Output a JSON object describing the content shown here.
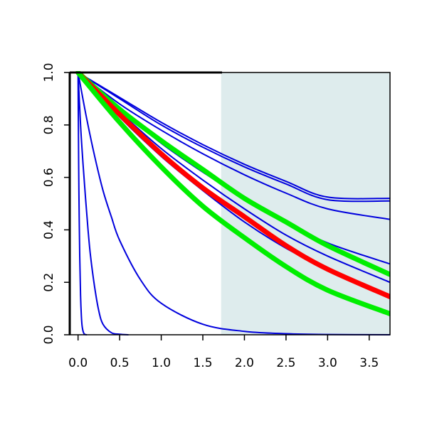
{
  "chart_data": {
    "type": "line",
    "title": "",
    "xlabel": "",
    "ylabel": "",
    "xlim": [
      -0.1,
      3.75
    ],
    "ylim": [
      0,
      1
    ],
    "x_ticks": [
      "0.0",
      "0.5",
      "1.0",
      "1.5",
      "2.0",
      "2.5",
      "3.0",
      "3.5"
    ],
    "x_tick_values": [
      0,
      0.5,
      1,
      1.5,
      2,
      2.5,
      3,
      3.5
    ],
    "y_ticks": [
      "0.0",
      "0.2",
      "0.4",
      "0.6",
      "0.8",
      "1.0"
    ],
    "y_tick_values": [
      0,
      0.2,
      0.4,
      0.6,
      0.8,
      1
    ],
    "shaded_region": {
      "x_from": 1.72,
      "x_to": 3.75,
      "color": "#deeced"
    },
    "series": [
      {
        "color": "#0000dd",
        "width": "thin",
        "x": [
          0,
          0.5,
          1,
          1.5,
          2,
          2.5,
          3,
          3.75
        ],
        "y": [
          1,
          0.905,
          0.81,
          0.725,
          0.65,
          0.585,
          0.525,
          0.52
        ]
      },
      {
        "color": "#0000dd",
        "width": "thin",
        "x": [
          0,
          0.5,
          1,
          1.5,
          2,
          2.5,
          3,
          3.75
        ],
        "y": [
          1,
          0.9,
          0.8,
          0.715,
          0.64,
          0.575,
          0.515,
          0.51
        ]
      },
      {
        "color": "#0000dd",
        "width": "thin",
        "x": [
          0,
          0.5,
          1,
          1.5,
          2,
          2.5,
          3,
          3.75
        ],
        "y": [
          1,
          0.88,
          0.78,
          0.69,
          0.61,
          0.54,
          0.48,
          0.44
        ]
      },
      {
        "color": "#0000dd",
        "width": "thin",
        "x": [
          0,
          0.5,
          1,
          1.5,
          2,
          2.5,
          3,
          3.75
        ],
        "y": [
          1,
          0.86,
          0.73,
          0.62,
          0.52,
          0.43,
          0.35,
          0.27
        ]
      },
      {
        "color": "#0000dd",
        "width": "thin",
        "x": [
          0,
          0.5,
          1,
          1.5,
          2,
          2.5,
          3,
          3.75
        ],
        "y": [
          1,
          0.85,
          0.71,
          0.59,
          0.48,
          0.38,
          0.3,
          0.2
        ]
      },
      {
        "color": "#0000dd",
        "width": "thin",
        "x": [
          0,
          0.5,
          1,
          1.5,
          2,
          2.5,
          3,
          3.75
        ],
        "y": [
          1,
          0.83,
          0.68,
          0.55,
          0.43,
          0.33,
          0.25,
          0.14
        ]
      },
      {
        "color": "#0000dd",
        "width": "thin",
        "x": [
          0,
          0.1,
          0.2,
          0.3,
          0.4,
          0.5,
          0.75,
          1,
          1.5,
          2,
          2.5,
          3,
          3.75
        ],
        "y": [
          1,
          0.83,
          0.68,
          0.55,
          0.45,
          0.36,
          0.21,
          0.12,
          0.04,
          0.013,
          0.004,
          0.001,
          0
        ]
      },
      {
        "color": "#0000dd",
        "width": "thin",
        "x": [
          0,
          0.03,
          0.06,
          0.09,
          0.12,
          0.15,
          0.2,
          0.25,
          0.3,
          0.4,
          0.5,
          0.6
        ],
        "y": [
          1,
          0.8,
          0.65,
          0.52,
          0.4,
          0.3,
          0.18,
          0.09,
          0.04,
          0.008,
          0.002,
          0
        ]
      },
      {
        "color": "#0000dd",
        "width": "thin",
        "x": [
          0,
          0.005,
          0.01,
          0.02,
          0.03,
          0.04,
          0.05,
          0.07,
          0.1
        ],
        "y": [
          1,
          0.75,
          0.55,
          0.3,
          0.15,
          0.07,
          0.03,
          0.005,
          0
        ]
      },
      {
        "color": "#00ee00",
        "width": "thick",
        "x": [
          0,
          0.5,
          1,
          1.5,
          2,
          2.5,
          3,
          3.75
        ],
        "y": [
          1,
          0.86,
          0.74,
          0.63,
          0.52,
          0.43,
          0.34,
          0.23
        ]
      },
      {
        "color": "#ff0000",
        "width": "thick",
        "x": [
          0,
          0.5,
          1,
          1.5,
          2,
          2.5,
          3,
          3.75
        ],
        "y": [
          1,
          0.84,
          0.69,
          0.56,
          0.45,
          0.34,
          0.25,
          0.145
        ]
      },
      {
        "color": "#00ee00",
        "width": "thick",
        "x": [
          0,
          0.5,
          1,
          1.5,
          2,
          2.5,
          3,
          3.75
        ],
        "y": [
          1,
          0.81,
          0.64,
          0.49,
          0.37,
          0.26,
          0.17,
          0.08
        ]
      }
    ]
  }
}
